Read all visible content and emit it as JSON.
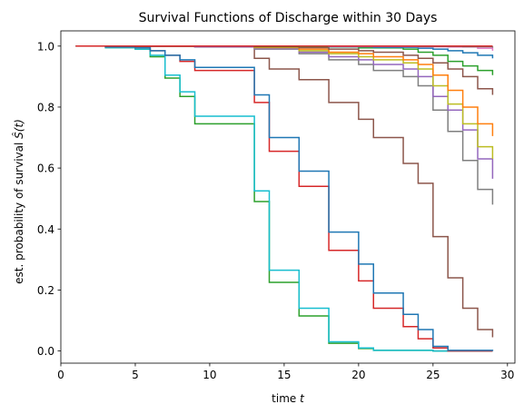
{
  "chart_data": {
    "type": "line",
    "step": "post",
    "title": "Survival Functions of Discharge within 30 Days",
    "xlabel_prefix": "time ",
    "xlabel_var": "t",
    "ylabel_prefix": "est. probability of survival ",
    "ylabel_var": "Ŝ(t)",
    "xlim": [
      0,
      30.5
    ],
    "ylim": [
      -0.04,
      1.05
    ],
    "xticks": [
      0,
      5,
      10,
      15,
      20,
      25,
      30
    ],
    "xtick_labels": [
      "0",
      "5",
      "10",
      "15",
      "20",
      "25",
      "30"
    ],
    "yticks": [
      0.0,
      0.2,
      0.4,
      0.6,
      0.8,
      1.0
    ],
    "ytick_labels": [
      "0.0",
      "0.2",
      "0.4",
      "0.6",
      "0.8",
      "1.0"
    ],
    "grid": false,
    "series": [
      {
        "color": "#2ca02c",
        "x": [
          1,
          3,
          5,
          6,
          7,
          8,
          9,
          13,
          14,
          16,
          18,
          20,
          21,
          25,
          29
        ],
        "y": [
          1.0,
          0.995,
          0.99,
          0.965,
          0.895,
          0.835,
          0.745,
          0.49,
          0.225,
          0.115,
          0.025,
          0.008,
          0.002,
          0.0,
          0.0
        ]
      },
      {
        "color": "#17becf",
        "x": [
          1,
          3,
          5,
          6,
          7,
          8,
          9,
          13,
          14,
          16,
          18,
          20,
          21,
          25,
          29
        ],
        "y": [
          1.0,
          0.995,
          0.99,
          0.97,
          0.905,
          0.85,
          0.77,
          0.525,
          0.265,
          0.14,
          0.03,
          0.01,
          0.002,
          0.0,
          0.0
        ]
      },
      {
        "color": "#d62728",
        "x": [
          1,
          3,
          5,
          6,
          7,
          8,
          9,
          13,
          14,
          16,
          18,
          20,
          21,
          23,
          24,
          25,
          26,
          29
        ],
        "y": [
          1.0,
          0.998,
          0.995,
          0.985,
          0.97,
          0.95,
          0.92,
          0.815,
          0.655,
          0.54,
          0.33,
          0.23,
          0.14,
          0.08,
          0.04,
          0.01,
          0.0,
          0.0
        ]
      },
      {
        "color": "#1f77b4",
        "x": [
          1,
          3,
          5,
          6,
          7,
          8,
          9,
          13,
          14,
          16,
          18,
          20,
          21,
          23,
          24,
          25,
          26,
          29
        ],
        "y": [
          1.0,
          0.998,
          0.995,
          0.985,
          0.97,
          0.955,
          0.93,
          0.84,
          0.7,
          0.59,
          0.39,
          0.285,
          0.19,
          0.12,
          0.07,
          0.015,
          0.002,
          0.0
        ]
      },
      {
        "color": "#8c564b",
        "x": [
          1,
          5,
          9,
          13,
          14,
          16,
          18,
          20,
          21,
          23,
          24,
          25,
          26,
          27,
          28,
          29
        ],
        "y": [
          1.0,
          0.999,
          0.997,
          0.96,
          0.925,
          0.89,
          0.815,
          0.76,
          0.7,
          0.615,
          0.55,
          0.375,
          0.24,
          0.14,
          0.07,
          0.045
        ]
      },
      {
        "color": "#7f7f7f",
        "x": [
          1,
          9,
          13,
          16,
          18,
          20,
          21,
          23,
          24,
          25,
          26,
          27,
          28,
          29
        ],
        "y": [
          1.0,
          0.998,
          0.99,
          0.975,
          0.955,
          0.94,
          0.92,
          0.9,
          0.87,
          0.79,
          0.72,
          0.625,
          0.53,
          0.48
        ]
      },
      {
        "color": "#9467bd",
        "x": [
          1,
          9,
          13,
          16,
          18,
          20,
          21,
          23,
          24,
          25,
          26,
          27,
          28,
          29
        ],
        "y": [
          1.0,
          0.998,
          0.992,
          0.98,
          0.965,
          0.955,
          0.94,
          0.925,
          0.9,
          0.835,
          0.79,
          0.725,
          0.63,
          0.565
        ]
      },
      {
        "color": "#bcbd22",
        "x": [
          1,
          13,
          16,
          18,
          20,
          21,
          23,
          24,
          25,
          26,
          27,
          28,
          29
        ],
        "y": [
          1.0,
          0.995,
          0.985,
          0.975,
          0.965,
          0.955,
          0.945,
          0.925,
          0.87,
          0.81,
          0.745,
          0.67,
          0.63
        ]
      },
      {
        "color": "#ff7f0e",
        "x": [
          1,
          13,
          16,
          18,
          20,
          21,
          23,
          24,
          25,
          26,
          27,
          28,
          29
        ],
        "y": [
          1.0,
          0.997,
          0.99,
          0.98,
          0.975,
          0.965,
          0.955,
          0.94,
          0.905,
          0.855,
          0.8,
          0.745,
          0.705
        ]
      },
      {
        "color": "#8c564b",
        "x": [
          1,
          13,
          16,
          18,
          20,
          21,
          23,
          24,
          25,
          26,
          27,
          28,
          29
        ],
        "y": [
          1.0,
          0.998,
          0.995,
          0.99,
          0.985,
          0.98,
          0.97,
          0.96,
          0.945,
          0.925,
          0.9,
          0.86,
          0.84
        ]
      },
      {
        "color": "#2ca02c",
        "x": [
          1,
          13,
          18,
          20,
          23,
          24,
          25,
          26,
          27,
          28,
          29
        ],
        "y": [
          1.0,
          0.999,
          0.997,
          0.994,
          0.99,
          0.98,
          0.97,
          0.95,
          0.935,
          0.92,
          0.905
        ]
      },
      {
        "color": "#1f77b4",
        "x": [
          1,
          13,
          18,
          21,
          24,
          25,
          26,
          27,
          28,
          29
        ],
        "y": [
          1.0,
          1.0,
          0.998,
          0.996,
          0.993,
          0.99,
          0.985,
          0.978,
          0.97,
          0.96
        ]
      },
      {
        "color": "#e377c2",
        "x": [
          1,
          18,
          24,
          26,
          28,
          29
        ],
        "y": [
          1.0,
          0.999,
          0.998,
          0.997,
          0.993,
          0.985
        ]
      },
      {
        "color": "#7f7f7f",
        "x": [
          1,
          24,
          27,
          29
        ],
        "y": [
          1.0,
          0.999,
          0.998,
          0.995
        ]
      },
      {
        "color": "#d62728",
        "x": [
          1,
          29
        ],
        "y": [
          1.0,
          1.0
        ]
      }
    ]
  }
}
